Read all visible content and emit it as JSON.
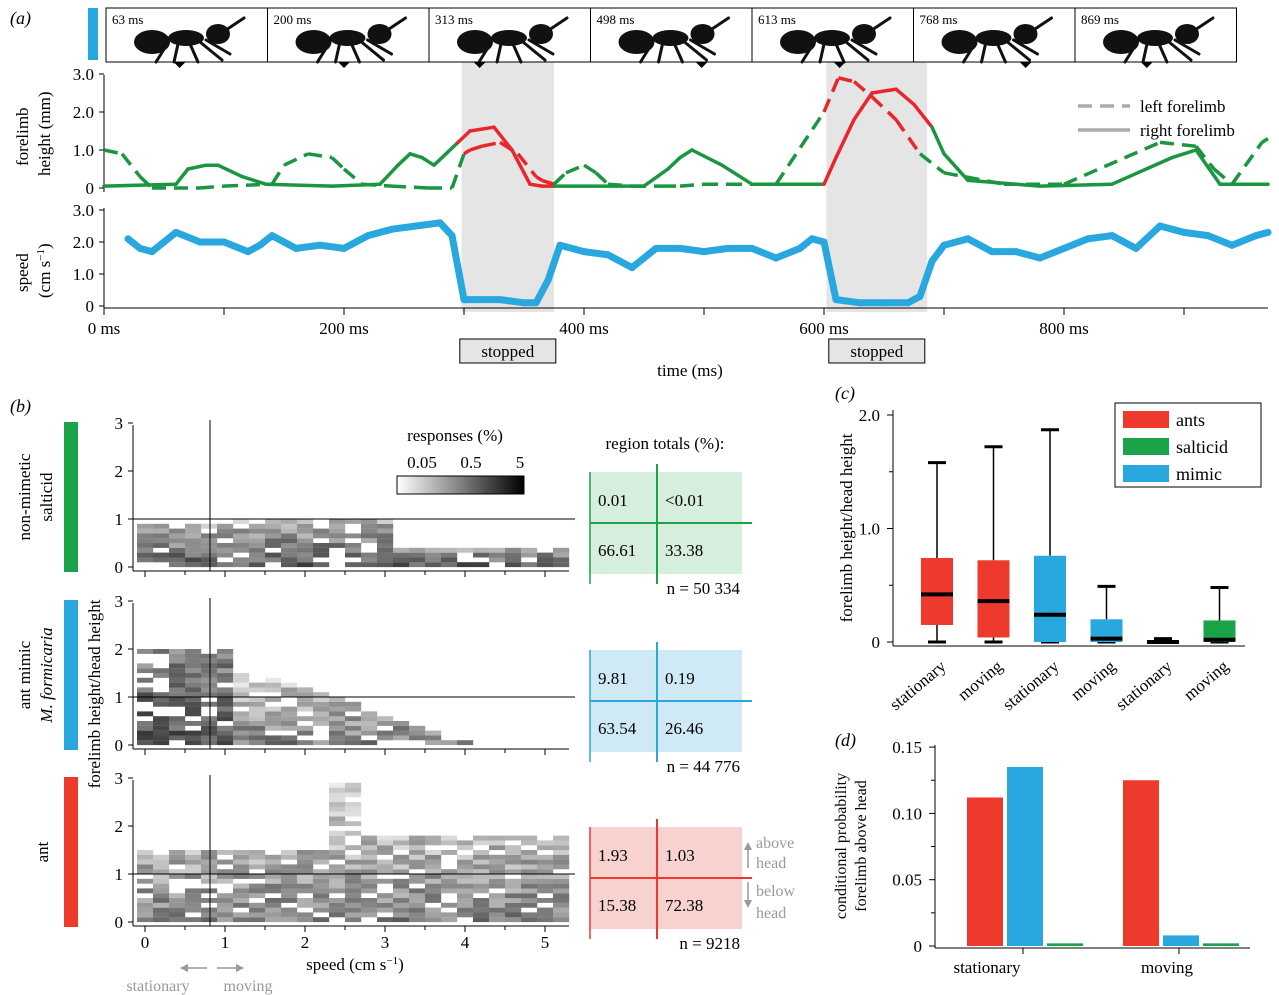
{
  "panel_a": {
    "label": "(a)",
    "frames": [
      {
        "label": "63 ms",
        "t": 63
      },
      {
        "label": "200 ms",
        "t": 200
      },
      {
        "label": "313 ms",
        "t": 313
      },
      {
        "label": "498 ms",
        "t": 498
      },
      {
        "label": "613 ms",
        "t": 613
      },
      {
        "label": "768 ms",
        "t": 768
      },
      {
        "label": "869 ms",
        "t": 869
      }
    ],
    "top_ylabel": [
      "forelimb",
      "height (mm)"
    ],
    "bottom_ylabel": [
      "speed",
      "(cm s",
      "−1",
      ")"
    ],
    "top_yticks": [
      "3.0",
      "2.0",
      "1.0",
      "0"
    ],
    "bottom_yticks": [
      "3.0",
      "2.0",
      "1.0",
      "0"
    ],
    "xticks": [
      "0 ms",
      "200 ms",
      "400 ms",
      "600 ms",
      "800 ms"
    ],
    "xlabel": "time (ms)",
    "stopped_label": "stopped",
    "legend": [
      "left forelimb",
      "right forelimb"
    ],
    "colors": {
      "accent": "#29a8e0",
      "moving": "#1a9641",
      "stopped": "#e8262b"
    }
  },
  "panel_b": {
    "label": "(b)",
    "rows": [
      {
        "name_lines": [
          "non-mimetic",
          "salticid"
        ],
        "color": "#1ba34a",
        "totals": [
          "0.01",
          "<0.01",
          "66.61",
          "33.38"
        ],
        "n": "n = 50 334",
        "bg": "#d6eedc",
        "line": "#1ba34a"
      },
      {
        "name_lines": [
          "ant mimic",
          "M. formicaria"
        ],
        "color": "#29a8e0",
        "totals": [
          "9.81",
          "0.19",
          "63.54",
          "26.46"
        ],
        "n": "n = 44 776",
        "bg": "#cfe9f7",
        "line": "#29a8e0"
      },
      {
        "name_lines": [
          "ant"
        ],
        "color": "#ee3a2c",
        "totals": [
          "1.93",
          "1.03",
          "15.38",
          "72.38"
        ],
        "n": "n = 9218",
        "bg": "#f8d2cf",
        "line": "#ee3a2c"
      }
    ],
    "yticks": [
      "3",
      "2",
      "1",
      "0"
    ],
    "xticks": [
      "0",
      "1",
      "2",
      "3",
      "4",
      "5"
    ],
    "ylabel": "forelimb height/head height",
    "xlabel": [
      "speed (cm s",
      "−1",
      ")"
    ],
    "colorbar_title": "responses (%)",
    "colorbar_ticks": [
      "0.05",
      "0.5",
      "5"
    ],
    "region_totals_title": "region totals (%):",
    "above_head": [
      "above",
      "head"
    ],
    "below_head": [
      "below",
      "head"
    ],
    "stationary": "stationary",
    "moving": "moving"
  },
  "chart_data": [
    {
      "type": "line",
      "panel": "a",
      "x_unit": "ms",
      "xlim": [
        0,
        970
      ],
      "top": {
        "ylim": [
          0,
          3.0
        ],
        "series": [
          {
            "name": "left forelimb",
            "x": [
              0,
              15,
              30,
              40,
              80,
              100,
              140,
              150,
              170,
              190,
              200,
              215,
              240,
              270,
              290,
              300,
              305,
              315,
              330,
              345,
              360,
              365,
              375,
              385,
              400,
              410,
              420,
              440,
              465,
              480,
              500,
              520,
              560,
              600,
              612,
              625,
              640,
              660,
              680,
              700,
              750,
              800,
              880,
              910,
              925,
              940,
              965,
              970
            ],
            "y": [
              1.0,
              0.9,
              0.3,
              0.0,
              0.0,
              0.05,
              0.1,
              0.6,
              0.9,
              0.8,
              0.5,
              0.1,
              0.05,
              0.0,
              0.0,
              0.9,
              1.0,
              1.1,
              1.2,
              0.9,
              0.3,
              0.2,
              0.1,
              0.4,
              0.6,
              0.4,
              0.1,
              0.05,
              0.05,
              0.05,
              0.1,
              0.1,
              0.1,
              2.0,
              2.9,
              2.8,
              2.4,
              1.8,
              0.9,
              0.4,
              0.1,
              0.1,
              1.2,
              1.1,
              0.5,
              0.1,
              1.2,
              1.3
            ]
          },
          {
            "name": "right forelimb",
            "x": [
              0,
              60,
              70,
              85,
              95,
              115,
              135,
              190,
              230,
              245,
              255,
              265,
              275,
              285,
              295,
              305,
              325,
              340,
              350,
              355,
              365,
              375,
              450,
              470,
              480,
              490,
              515,
              540,
              600,
              610,
              625,
              640,
              660,
              675,
              690,
              700,
              720,
              780,
              840,
              890,
              910,
              930,
              950,
              970
            ],
            "y": [
              0.05,
              0.1,
              0.5,
              0.6,
              0.6,
              0.3,
              0.1,
              0.05,
              0.1,
              0.6,
              0.9,
              0.8,
              0.6,
              0.9,
              1.2,
              1.5,
              1.6,
              1.0,
              0.4,
              0.1,
              0.05,
              0.05,
              0.05,
              0.5,
              0.8,
              1.0,
              0.6,
              0.1,
              0.1,
              0.8,
              1.8,
              2.5,
              2.6,
              2.2,
              1.6,
              0.9,
              0.2,
              0.05,
              0.1,
              0.8,
              1.0,
              0.1,
              0.1,
              0.1
            ]
          }
        ]
      },
      "bottom": {
        "ylim": [
          0,
          3.0
        ],
        "series": [
          {
            "name": "speed",
            "x": [
              20,
              30,
              40,
              60,
              80,
              100,
              120,
              130,
              140,
              160,
              180,
              200,
              220,
              240,
              260,
              280,
              290,
              300,
              310,
              330,
              350,
              360,
              370,
              380,
              400,
              420,
              440,
              460,
              480,
              500,
              520,
              540,
              560,
              580,
              590,
              600,
              610,
              630,
              650,
              670,
              680,
              690,
              700,
              720,
              740,
              760,
              780,
              800,
              820,
              840,
              860,
              880,
              900,
              920,
              940,
              960,
              970
            ],
            "y": [
              2.1,
              1.8,
              1.7,
              2.3,
              2.0,
              2.0,
              1.7,
              1.9,
              2.2,
              1.8,
              1.9,
              1.8,
              2.2,
              2.4,
              2.5,
              2.6,
              2.2,
              0.2,
              0.2,
              0.2,
              0.1,
              0.1,
              0.8,
              1.9,
              1.7,
              1.6,
              1.2,
              1.8,
              1.8,
              1.7,
              1.8,
              1.8,
              1.5,
              1.8,
              2.1,
              2.0,
              0.2,
              0.1,
              0.1,
              0.1,
              0.3,
              1.4,
              1.9,
              2.1,
              1.7,
              1.7,
              1.5,
              1.8,
              2.1,
              2.2,
              1.8,
              2.5,
              2.3,
              2.2,
              1.9,
              2.2,
              2.3
            ]
          }
        ]
      },
      "stopped_intervals": [
        [
          298,
          375
        ],
        [
          602,
          686
        ]
      ]
    },
    {
      "type": "heatmap",
      "panel": "b",
      "xlabel": "speed (cm s−1)",
      "ylabel": "forelimb height/head height",
      "xlim": [
        -0.1,
        5.3
      ],
      "ylim": [
        0,
        3
      ],
      "thresholds": {
        "speed": 0.85,
        "height": 1.0
      },
      "bin_size": {
        "speed": 0.2,
        "height": 0.1
      },
      "colorbar_ticks": [
        0.05,
        0.5,
        5
      ]
    },
    {
      "type": "box",
      "panel": "c",
      "label": "(c)",
      "ylabel": "forelimb height/head height",
      "ylim": [
        0,
        2.0
      ],
      "yticks": [
        "0",
        "1.0",
        "2.0"
      ],
      "legend": [
        {
          "name": "ants",
          "color": "#ee3a2c"
        },
        {
          "name": "salticid",
          "color": "#1ba34a"
        },
        {
          "name": "mimic",
          "color": "#29a8e0"
        }
      ],
      "boxes": [
        {
          "label": "stationary",
          "group": "ants",
          "color": "#ee3a2c",
          "whisker_low": 0.0,
          "q1": 0.15,
          "median": 0.42,
          "q3": 0.74,
          "whisker_high": 1.58
        },
        {
          "label": "moving",
          "group": "ants",
          "color": "#ee3a2c",
          "whisker_low": 0.0,
          "q1": 0.04,
          "median": 0.36,
          "q3": 0.72,
          "whisker_high": 1.72
        },
        {
          "label": "stationary",
          "group": "mimic",
          "color": "#29a8e0",
          "whisker_low": 0.0,
          "q1": 0.0,
          "median": 0.24,
          "q3": 0.76,
          "whisker_high": 1.87
        },
        {
          "label": "moving",
          "group": "mimic",
          "color": "#29a8e0",
          "whisker_low": 0.0,
          "q1": 0.0,
          "median": 0.03,
          "q3": 0.2,
          "whisker_high": 0.49
        },
        {
          "label": "stationary",
          "group": "salticid",
          "color": "#1ba34a",
          "whisker_low": 0.0,
          "q1": 0.0,
          "median": 0.0,
          "q3": 0.01,
          "whisker_high": 0.03
        },
        {
          "label": "moving",
          "group": "salticid",
          "color": "#1ba34a",
          "whisker_low": 0.0,
          "q1": 0.0,
          "median": 0.02,
          "q3": 0.19,
          "whisker_high": 0.48
        }
      ]
    },
    {
      "type": "bar",
      "panel": "d",
      "label": "(d)",
      "ylabel": [
        "conditional probability",
        "forelimb above head"
      ],
      "ylim": [
        0,
        0.15
      ],
      "yticks": [
        "0",
        "0.05",
        "0.10",
        "0.15"
      ],
      "categories": [
        "stationary",
        "moving"
      ],
      "series": [
        {
          "name": "ants",
          "color": "#ee3a2c",
          "values": [
            0.112,
            0.125
          ]
        },
        {
          "name": "mimic",
          "color": "#29a8e0",
          "values": [
            0.135,
            0.008
          ]
        },
        {
          "name": "salticid",
          "color": "#1ba34a",
          "values": [
            0.002,
            0.002
          ]
        }
      ]
    }
  ]
}
